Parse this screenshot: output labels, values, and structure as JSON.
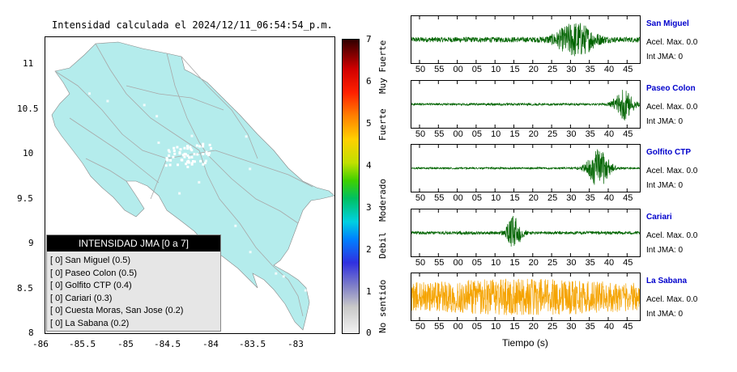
{
  "map": {
    "title": "Intensidad calculada el 2024/12/11_06:54:54_p.m.",
    "y_ticks": [
      "11",
      "10.5",
      "10",
      "9.5",
      "9",
      "8.5",
      "8"
    ],
    "x_ticks": [
      "-86",
      "-85.5",
      "-85",
      "-84.5",
      "-84",
      "-83.5",
      "-83"
    ],
    "land_color": "#b4ecec",
    "road_color": "#a8a8a8"
  },
  "legend": {
    "title": "INTENSIDAD JMA [0 a 7]",
    "items": [
      "[ 0]  San Miguel (0.5)",
      "[ 0]  Paseo Colon (0.5)",
      "[ 0]  Golfito CTP (0.4)",
      "[ 0]  Cariari (0.3)",
      "[ 0]  Cuesta Moras, San Jose (0.2)",
      "[ 0]  La Sabana (0.2)"
    ]
  },
  "colorbar": {
    "ticks": [
      "7",
      "6",
      "5",
      "4",
      "3",
      "2",
      "1",
      "0"
    ],
    "labels": [
      "Muy Fuerte",
      "Fuerte",
      "Moderado",
      "Debil",
      "No sentido"
    ]
  },
  "time_axis": {
    "ticks": [
      "50",
      "55",
      "00",
      "05",
      "10",
      "15",
      "20",
      "25",
      "30",
      "35",
      "40",
      "45"
    ],
    "label": "Tiempo (s)"
  },
  "stations": [
    {
      "name": "San Miguel",
      "accel": "Acel. Max. 0.0",
      "int": "Int JMA: 0",
      "color": "#006400",
      "burst_at": 0.72,
      "burst_width": 0.1,
      "base": 0.12,
      "peak": 0.85
    },
    {
      "name": "Paseo Colon",
      "accel": "Acel. Max. 0.0",
      "int": "Int JMA: 0",
      "color": "#006400",
      "burst_at": 0.93,
      "burst_width": 0.05,
      "base": 0.05,
      "peak": 0.75
    },
    {
      "name": "Golfito CTP",
      "accel": "Acel. Max. 0.0",
      "int": "Int JMA: 0",
      "color": "#006400",
      "burst_at": 0.82,
      "burst_width": 0.06,
      "base": 0.04,
      "peak": 0.9
    },
    {
      "name": "Cariari",
      "accel": "Acel. Max. 0.0",
      "int": "Int JMA: 0",
      "color": "#006400",
      "burst_at": 0.45,
      "burst_width": 0.04,
      "base": 0.07,
      "peak": 0.8
    },
    {
      "name": "La Sabana",
      "accel": "Acel. Max. 0.0",
      "int": "Int JMA: 0",
      "color": "#f5a300",
      "burst_at": 0.5,
      "burst_width": 0.5,
      "base": 0.6,
      "peak": 0.85
    }
  ]
}
